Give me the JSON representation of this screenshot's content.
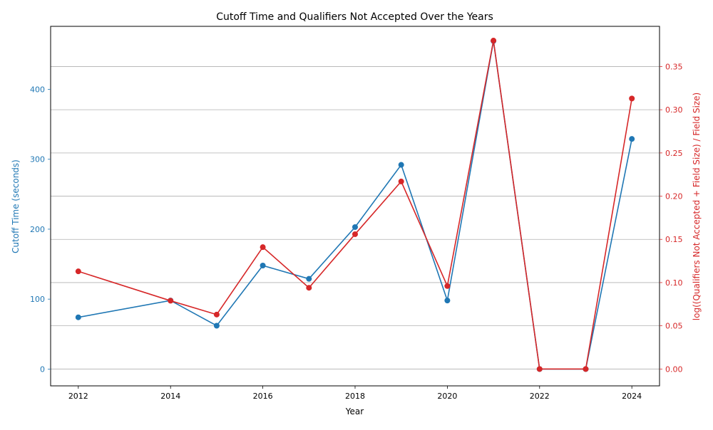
{
  "chart_data": {
    "type": "line",
    "title": "Cutoff Time and Qualifiers Not Accepted Over the Years",
    "xlabel": "Year",
    "ylabel_left": "Cutoff Time (seconds)",
    "ylabel_right": "log((Qualifiers Not Accepted + Field Size) / Field Size)",
    "x": [
      2012,
      2014,
      2015,
      2016,
      2017,
      2018,
      2019,
      2020,
      2021,
      2022,
      2023,
      2024
    ],
    "xlim": [
      2011.4,
      2024.6
    ],
    "ylim_left": [
      -24,
      490
    ],
    "ylim_right": [
      -0.0195,
      0.3965
    ],
    "x_ticks": [
      2012,
      2014,
      2016,
      2018,
      2020,
      2022,
      2024
    ],
    "y_ticks_left": [
      0,
      100,
      200,
      300,
      400
    ],
    "y_ticks_right": [
      0.0,
      0.05,
      0.1,
      0.15,
      0.2,
      0.25,
      0.3,
      0.35
    ],
    "y_tick_labels_right": [
      "0.00",
      "0.05",
      "0.10",
      "0.15",
      "0.20",
      "0.25",
      "0.30",
      "0.35"
    ],
    "grid": "horizontal at right-axis ticks",
    "colors": {
      "cutoff": "#1f77b4",
      "not_accepted": "#d62728",
      "grid": "#b0b0b0",
      "axis": "#000000"
    },
    "series": [
      {
        "axis": "left",
        "values": [
          74,
          98,
          62,
          148,
          129,
          203,
          292,
          98,
          469,
          0,
          0,
          329
        ]
      },
      {
        "axis": "right",
        "values": [
          0.113,
          0.079,
          0.063,
          0.141,
          0.094,
          0.156,
          0.217,
          0.096,
          0.38,
          0.0,
          0.0,
          0.313
        ]
      }
    ]
  }
}
